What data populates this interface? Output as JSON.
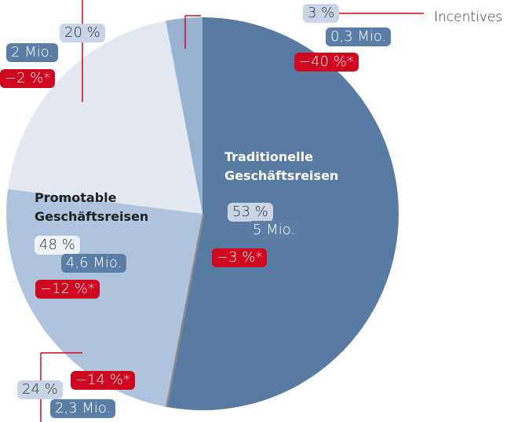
{
  "chart_data": {
    "type": "pie",
    "categories": [
      "Traditionelle Geschäftsreisen",
      null,
      null,
      "Incentives"
    ],
    "values": [
      53,
      24,
      20,
      3
    ],
    "value_labels": [
      "53 %",
      "24 %",
      "20 %",
      "3 %"
    ],
    "amounts": [
      "5 Mio.",
      "2,3 Mio.",
      "2 Mio.",
      "0,3 Mio."
    ],
    "changes": [
      "−3 %*",
      "−14 %*",
      "−2 %*",
      "−40 %*"
    ],
    "colors": [
      "#587ba3",
      "#b0c3dc",
      "#e4e9f1",
      "#9ab2d2"
    ],
    "group": {
      "name": "Promotable Geschäftsreisen",
      "value": 48,
      "value_label": "48 %",
      "amount": "4,6 Mio.",
      "change": "−12 %*"
    }
  }
}
